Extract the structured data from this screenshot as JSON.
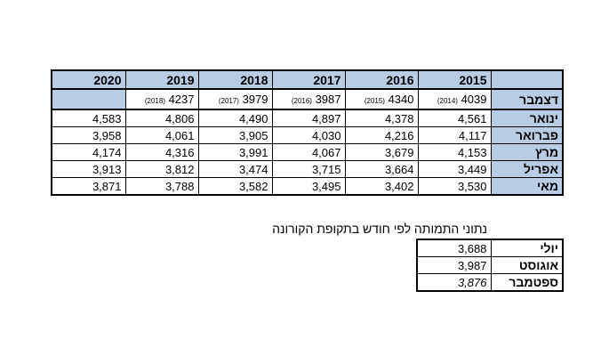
{
  "main_table": {
    "columns": [
      "2020",
      "2019",
      "2018",
      "2017",
      "2016",
      "2015"
    ],
    "december": {
      "label": "דצמבר",
      "cells": [
        {
          "note": "(2018)",
          "value": "4237"
        },
        {
          "note": "(2017)",
          "value": "3979"
        },
        {
          "note": "(2016)",
          "value": "3987"
        },
        {
          "note": "(2015)",
          "value": "4340"
        },
        {
          "note": "(2014)",
          "value": "4039"
        }
      ]
    },
    "rows": [
      {
        "label": "ינואר",
        "values": [
          "4,583",
          "4,806",
          "4,490",
          "4,897",
          "4,378",
          "4,561"
        ]
      },
      {
        "label": "פברואר",
        "values": [
          "3,958",
          "4,061",
          "3,905",
          "4,030",
          "4,216",
          "4,117"
        ]
      },
      {
        "label": "מרץ",
        "values": [
          "4,174",
          "4,316",
          "3,991",
          "4,067",
          "3,679",
          "4,153"
        ]
      },
      {
        "label": "אפריל",
        "values": [
          "3,913",
          "3,812",
          "3,474",
          "3,715",
          "3,664",
          "3,449"
        ]
      },
      {
        "label": "מאי",
        "values": [
          "3,871",
          "3,788",
          "3,582",
          "3,495",
          "3,402",
          "3,530"
        ]
      }
    ]
  },
  "covid_table": {
    "title": "נתוני התמותה לפי חודש בתקופת הקורונה",
    "rows": [
      {
        "label": "יולי",
        "value": "3,688"
      },
      {
        "label": "אוגוסט",
        "value": "3,987"
      },
      {
        "label": "ספטמבר",
        "value": "3,876"
      }
    ]
  }
}
